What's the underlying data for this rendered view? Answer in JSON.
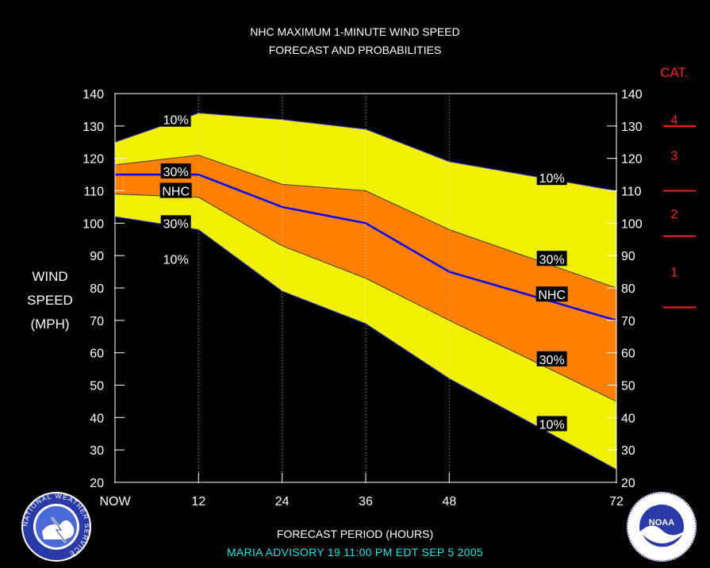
{
  "title_line1": "NHC MAXIMUM 1-MINUTE WIND SPEED",
  "title_line2": "FORECAST AND PROBABILITIES",
  "xlabel": "FORECAST PERIOD (HOURS)",
  "advisory": "MARIA    ADVISORY  19  11:00  PM  EDT  SEP  5  2005",
  "ylabel_lines": [
    "WIND",
    "SPEED",
    "(MPH)"
  ],
  "category_title": "CAT.",
  "logos": {
    "left": "NATIONAL WEATHER SERVICE",
    "left_center": "NWS",
    "right": "NOAA"
  },
  "colors": {
    "background": "#000000",
    "band_10": "#f0f000",
    "band_30": "#ff7f00",
    "nhc_line": "#0000ff",
    "category": "#ff2020",
    "advisory": "#19e6e6"
  },
  "chart_data": {
    "type": "area",
    "x": [
      0,
      12,
      24,
      36,
      48,
      72
    ],
    "x_tick_labels": [
      "NOW",
      "12",
      "24",
      "36",
      "48",
      "72"
    ],
    "ylim": [
      20,
      140
    ],
    "y_ticks": [
      20,
      30,
      40,
      50,
      60,
      70,
      80,
      90,
      100,
      110,
      120,
      130,
      140
    ],
    "grid": "vertical dotted at 12, 24, 36, 48",
    "series": [
      {
        "name": "10%",
        "values": [
          125,
          134,
          132,
          129,
          119,
          110
        ]
      },
      {
        "name": "30%",
        "values": [
          118,
          121,
          112,
          110,
          98,
          80
        ]
      },
      {
        "name": "NHC",
        "values": [
          115,
          115,
          105,
          100,
          85,
          70
        ]
      },
      {
        "name": "30%",
        "values": [
          109,
          108,
          93,
          83,
          70,
          45
        ]
      },
      {
        "name": "10%",
        "values": [
          102,
          98,
          79,
          69,
          52,
          24
        ]
      }
    ],
    "labels": [
      {
        "text": "10%",
        "x": 6,
        "y": 132
      },
      {
        "text": "30%",
        "x": 6,
        "y": 116
      },
      {
        "text": "NHC",
        "x": 6,
        "y": 110
      },
      {
        "text": "30%",
        "x": 6,
        "y": 100
      },
      {
        "text": "10%",
        "x": 6,
        "y": 89
      },
      {
        "text": "10%",
        "x": 60,
        "y": 114
      },
      {
        "text": "30%",
        "x": 60,
        "y": 89
      },
      {
        "text": "NHC",
        "x": 60,
        "y": 78
      },
      {
        "text": "30%",
        "x": 60,
        "y": 58
      },
      {
        "text": "10%",
        "x": 60,
        "y": 38
      }
    ],
    "categories": [
      {
        "label": "4",
        "y": 132
      },
      {
        "label": "3",
        "y": 121
      },
      {
        "label": "2",
        "y": 103
      },
      {
        "label": "1",
        "y": 85
      }
    ],
    "category_boundaries": [
      130,
      110,
      96,
      74
    ]
  }
}
